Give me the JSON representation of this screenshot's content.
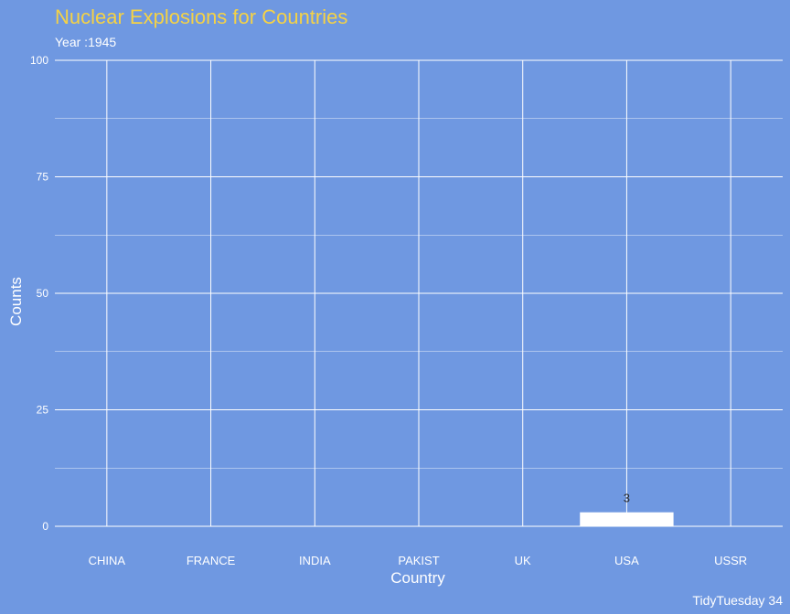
{
  "chart_data": {
    "type": "bar",
    "title": "Nuclear Explosions for Countries",
    "subtitle": "Year :1945",
    "xlabel": "Country",
    "ylabel": "Counts",
    "caption": "TidyTuesday 34",
    "categories": [
      "CHINA",
      "FRANCE",
      "INDIA",
      "PAKIST",
      "UK",
      "USA",
      "USSR"
    ],
    "values": [
      0,
      0,
      0,
      0,
      0,
      3,
      0
    ],
    "data_labels": [
      "",
      "",
      "",
      "",
      "",
      "3",
      ""
    ],
    "ylim": [
      0,
      100
    ],
    "yticks": [
      0,
      25,
      50,
      75,
      100
    ],
    "grid": true,
    "legend": "none",
    "colors": {
      "background": "#6f98e1",
      "title": "#f5d245",
      "text": "#ffffff",
      "grid": "#ffffff",
      "bar": "#ffffff",
      "data_label": "#2a2a2a"
    }
  }
}
